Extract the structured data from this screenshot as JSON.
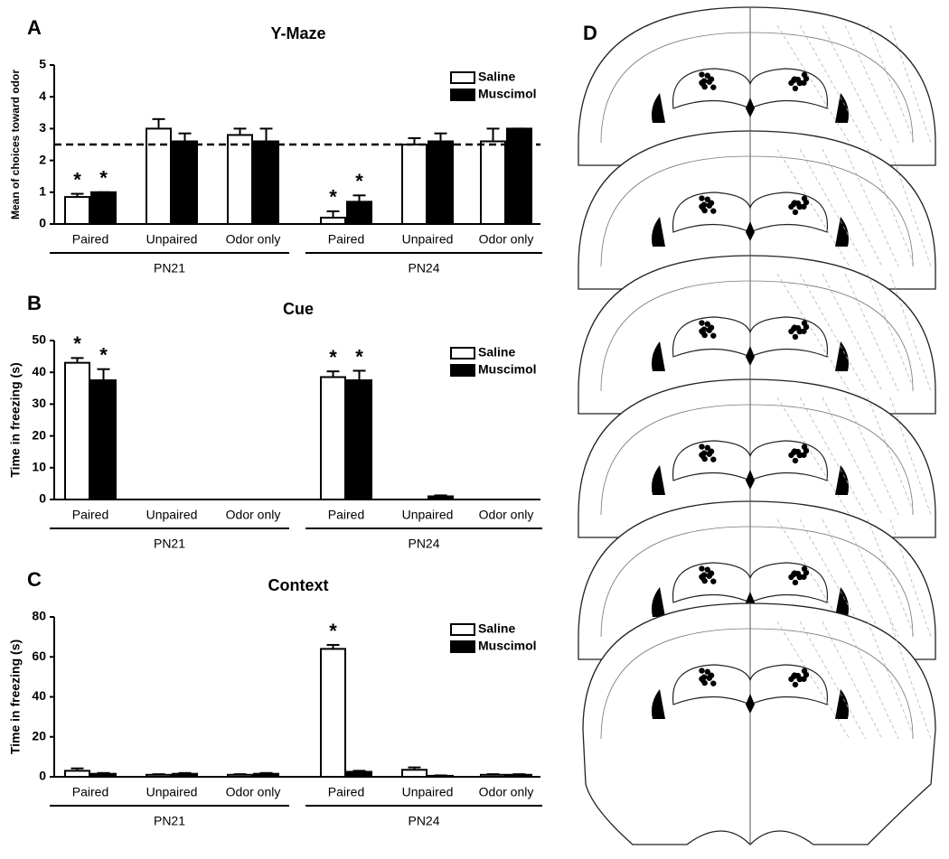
{
  "figure": {
    "panel_d_label": "D"
  },
  "chart_data": [
    {
      "type": "bar",
      "panel": "A",
      "title": "Y-Maze",
      "y_label": "Mean of choices toward odor",
      "categories": [
        "Paired",
        "Unpaired",
        "Odor only",
        "Paired",
        "Unpaired",
        "Odor only"
      ],
      "groups": [
        {
          "label": "PN21",
          "start": 0,
          "end": 2
        },
        {
          "label": "PN24",
          "start": 3,
          "end": 5
        }
      ],
      "series": [
        {
          "name": "Saline",
          "color": "#ffffff",
          "values": [
            0.85,
            3.0,
            2.8,
            0.2,
            2.5,
            2.6
          ],
          "errors": [
            0.1,
            0.3,
            0.2,
            0.2,
            0.2,
            0.4
          ]
        },
        {
          "name": "Muscimol",
          "color": "#000000",
          "values": [
            1.0,
            2.6,
            2.6,
            0.7,
            2.6,
            3.0
          ],
          "errors": [
            0,
            0.25,
            0.4,
            0.2,
            0.25,
            0
          ]
        }
      ],
      "reference_line": 2.5,
      "annotations": [
        {
          "text": "*",
          "series": 0,
          "index": 0
        },
        {
          "text": "*",
          "series": 1,
          "index": 0
        },
        {
          "text": "*",
          "series": 0,
          "index": 3
        },
        {
          "text": "*",
          "series": 1,
          "index": 3
        }
      ],
      "ylim": [
        0,
        5
      ],
      "yticks": [
        0,
        1,
        2,
        3,
        4,
        5
      ],
      "legend": "upper right"
    },
    {
      "type": "bar",
      "panel": "B",
      "title": "Cue",
      "y_label": "Time in freezing (s)",
      "categories": [
        "Paired",
        "Unpaired",
        "Odor only",
        "Paired",
        "Unpaired",
        "Odor only"
      ],
      "groups": [
        {
          "label": "PN21",
          "start": 0,
          "end": 2
        },
        {
          "label": "PN24",
          "start": 3,
          "end": 5
        }
      ],
      "series": [
        {
          "name": "Saline",
          "color": "#ffffff",
          "values": [
            43,
            0,
            0,
            38.5,
            0,
            0
          ],
          "errors": [
            1.5,
            0,
            0,
            1.8,
            0,
            0
          ]
        },
        {
          "name": "Muscimol",
          "color": "#000000",
          "values": [
            37.5,
            0,
            0,
            37.5,
            1,
            0
          ],
          "errors": [
            3.5,
            0,
            0,
            3,
            0.3,
            0
          ]
        }
      ],
      "annotations": [
        {
          "text": "*",
          "series": 0,
          "index": 0
        },
        {
          "text": "*",
          "series": 1,
          "index": 0
        },
        {
          "text": "*",
          "series": 0,
          "index": 3
        },
        {
          "text": "*",
          "series": 1,
          "index": 3
        }
      ],
      "ylim": [
        0,
        50
      ],
      "yticks": [
        0,
        10,
        20,
        30,
        40,
        50
      ],
      "legend": "upper right"
    },
    {
      "type": "bar",
      "panel": "C",
      "title": "Context",
      "y_label": "Time in freezing (s)",
      "categories": [
        "Paired",
        "Unpaired",
        "Odor only",
        "Paired",
        "Unpaired",
        "Odor only"
      ],
      "groups": [
        {
          "label": "PN21",
          "start": 0,
          "end": 2
        },
        {
          "label": "PN24",
          "start": 3,
          "end": 5
        }
      ],
      "series": [
        {
          "name": "Saline",
          "color": "#ffffff",
          "values": [
            3,
            1,
            1,
            64,
            3.5,
            1
          ],
          "errors": [
            1.2,
            0.3,
            0.3,
            2,
            1.2,
            0.3
          ]
        },
        {
          "name": "Muscimol",
          "color": "#000000",
          "values": [
            1.5,
            1.5,
            1.5,
            2.5,
            0.5,
            1
          ],
          "errors": [
            0.4,
            0.4,
            0.4,
            0.5,
            0.2,
            0.3
          ]
        }
      ],
      "annotations": [
        {
          "text": "*",
          "series": 0,
          "index": 3
        }
      ],
      "ylim": [
        0,
        80
      ],
      "yticks": [
        0,
        20,
        40,
        60,
        80
      ],
      "legend": "upper right"
    }
  ]
}
